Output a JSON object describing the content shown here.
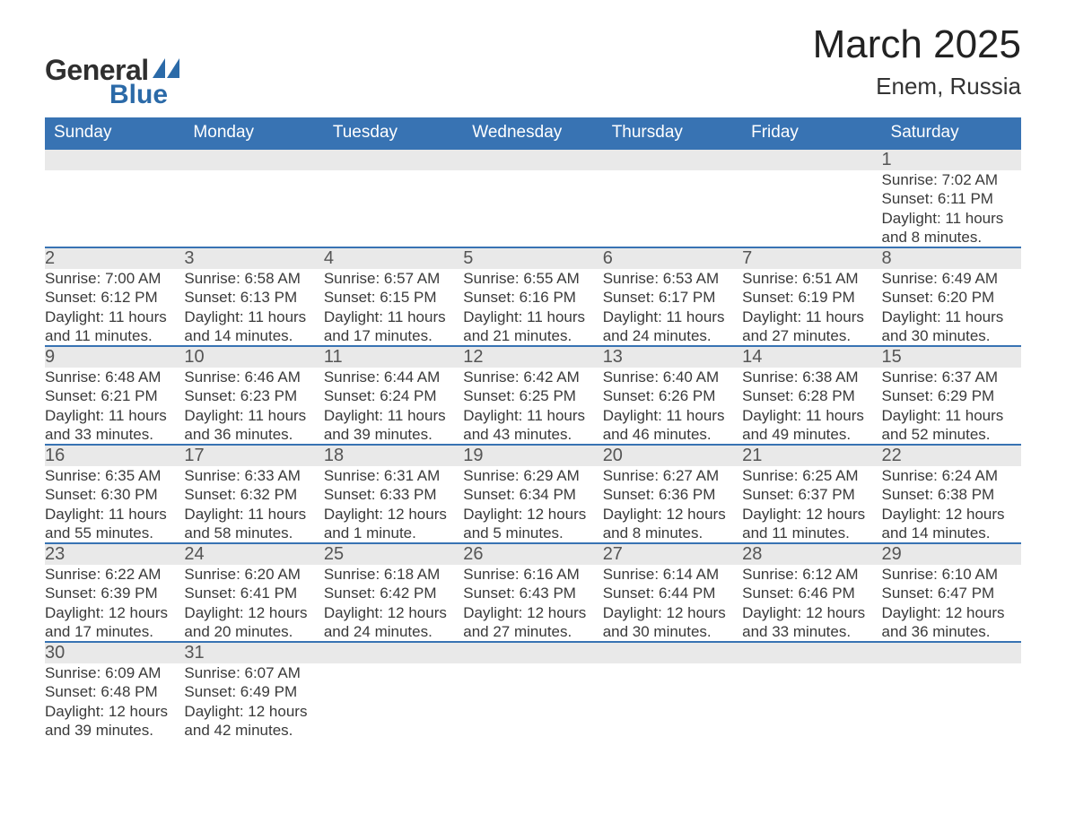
{
  "logo": {
    "text1": "General",
    "text2": "Blue",
    "text2_color": "#2b6aa8",
    "icon_color": "#2b6aa8"
  },
  "header": {
    "month_title": "March 2025",
    "location": "Enem, Russia"
  },
  "styling": {
    "header_bg": "#3873b3",
    "header_text": "#ffffff",
    "daynum_bg": "#e9e9e9",
    "row_divider": "#3873b3",
    "body_text": "#3a3a3a",
    "page_bg": "#ffffff",
    "title_fontsize": 44,
    "location_fontsize": 26,
    "dayhead_fontsize": 19,
    "daynum_fontsize": 20,
    "detail_fontsize": 17
  },
  "calendar": {
    "type": "table",
    "columns": [
      "Sunday",
      "Monday",
      "Tuesday",
      "Wednesday",
      "Thursday",
      "Friday",
      "Saturday"
    ],
    "weeks": [
      [
        null,
        null,
        null,
        null,
        null,
        null,
        {
          "day": 1,
          "sunrise": "7:02 AM",
          "sunset": "6:11 PM",
          "daylight": "11 hours and 8 minutes."
        }
      ],
      [
        {
          "day": 2,
          "sunrise": "7:00 AM",
          "sunset": "6:12 PM",
          "daylight": "11 hours and 11 minutes."
        },
        {
          "day": 3,
          "sunrise": "6:58 AM",
          "sunset": "6:13 PM",
          "daylight": "11 hours and 14 minutes."
        },
        {
          "day": 4,
          "sunrise": "6:57 AM",
          "sunset": "6:15 PM",
          "daylight": "11 hours and 17 minutes."
        },
        {
          "day": 5,
          "sunrise": "6:55 AM",
          "sunset": "6:16 PM",
          "daylight": "11 hours and 21 minutes."
        },
        {
          "day": 6,
          "sunrise": "6:53 AM",
          "sunset": "6:17 PM",
          "daylight": "11 hours and 24 minutes."
        },
        {
          "day": 7,
          "sunrise": "6:51 AM",
          "sunset": "6:19 PM",
          "daylight": "11 hours and 27 minutes."
        },
        {
          "day": 8,
          "sunrise": "6:49 AM",
          "sunset": "6:20 PM",
          "daylight": "11 hours and 30 minutes."
        }
      ],
      [
        {
          "day": 9,
          "sunrise": "6:48 AM",
          "sunset": "6:21 PM",
          "daylight": "11 hours and 33 minutes."
        },
        {
          "day": 10,
          "sunrise": "6:46 AM",
          "sunset": "6:23 PM",
          "daylight": "11 hours and 36 minutes."
        },
        {
          "day": 11,
          "sunrise": "6:44 AM",
          "sunset": "6:24 PM",
          "daylight": "11 hours and 39 minutes."
        },
        {
          "day": 12,
          "sunrise": "6:42 AM",
          "sunset": "6:25 PM",
          "daylight": "11 hours and 43 minutes."
        },
        {
          "day": 13,
          "sunrise": "6:40 AM",
          "sunset": "6:26 PM",
          "daylight": "11 hours and 46 minutes."
        },
        {
          "day": 14,
          "sunrise": "6:38 AM",
          "sunset": "6:28 PM",
          "daylight": "11 hours and 49 minutes."
        },
        {
          "day": 15,
          "sunrise": "6:37 AM",
          "sunset": "6:29 PM",
          "daylight": "11 hours and 52 minutes."
        }
      ],
      [
        {
          "day": 16,
          "sunrise": "6:35 AM",
          "sunset": "6:30 PM",
          "daylight": "11 hours and 55 minutes."
        },
        {
          "day": 17,
          "sunrise": "6:33 AM",
          "sunset": "6:32 PM",
          "daylight": "11 hours and 58 minutes."
        },
        {
          "day": 18,
          "sunrise": "6:31 AM",
          "sunset": "6:33 PM",
          "daylight": "12 hours and 1 minute."
        },
        {
          "day": 19,
          "sunrise": "6:29 AM",
          "sunset": "6:34 PM",
          "daylight": "12 hours and 5 minutes."
        },
        {
          "day": 20,
          "sunrise": "6:27 AM",
          "sunset": "6:36 PM",
          "daylight": "12 hours and 8 minutes."
        },
        {
          "day": 21,
          "sunrise": "6:25 AM",
          "sunset": "6:37 PM",
          "daylight": "12 hours and 11 minutes."
        },
        {
          "day": 22,
          "sunrise": "6:24 AM",
          "sunset": "6:38 PM",
          "daylight": "12 hours and 14 minutes."
        }
      ],
      [
        {
          "day": 23,
          "sunrise": "6:22 AM",
          "sunset": "6:39 PM",
          "daylight": "12 hours and 17 minutes."
        },
        {
          "day": 24,
          "sunrise": "6:20 AM",
          "sunset": "6:41 PM",
          "daylight": "12 hours and 20 minutes."
        },
        {
          "day": 25,
          "sunrise": "6:18 AM",
          "sunset": "6:42 PM",
          "daylight": "12 hours and 24 minutes."
        },
        {
          "day": 26,
          "sunrise": "6:16 AM",
          "sunset": "6:43 PM",
          "daylight": "12 hours and 27 minutes."
        },
        {
          "day": 27,
          "sunrise": "6:14 AM",
          "sunset": "6:44 PM",
          "daylight": "12 hours and 30 minutes."
        },
        {
          "day": 28,
          "sunrise": "6:12 AM",
          "sunset": "6:46 PM",
          "daylight": "12 hours and 33 minutes."
        },
        {
          "day": 29,
          "sunrise": "6:10 AM",
          "sunset": "6:47 PM",
          "daylight": "12 hours and 36 minutes."
        }
      ],
      [
        {
          "day": 30,
          "sunrise": "6:09 AM",
          "sunset": "6:48 PM",
          "daylight": "12 hours and 39 minutes."
        },
        {
          "day": 31,
          "sunrise": "6:07 AM",
          "sunset": "6:49 PM",
          "daylight": "12 hours and 42 minutes."
        },
        null,
        null,
        null,
        null,
        null
      ]
    ],
    "labels": {
      "sunrise_prefix": "Sunrise: ",
      "sunset_prefix": "Sunset: ",
      "daylight_prefix": "Daylight: "
    }
  }
}
